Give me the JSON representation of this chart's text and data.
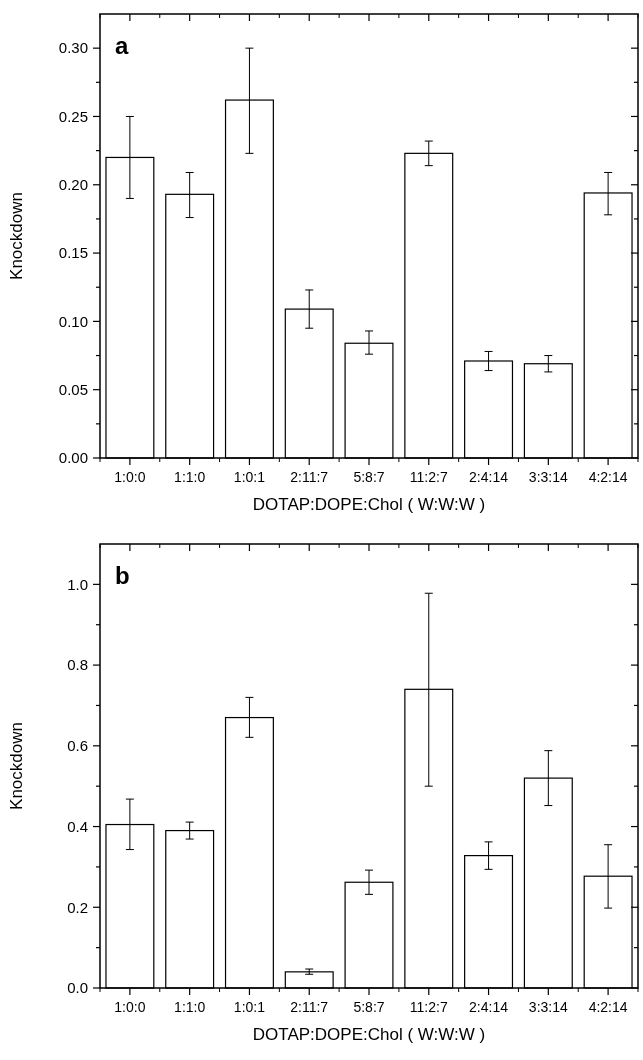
{
  "chart_data": [
    {
      "type": "bar",
      "title": "a",
      "categories": [
        "1:0:0",
        "1:1:0",
        "1:0:1",
        "2:11:7",
        "5:8:7",
        "11:2:7",
        "2:4:14",
        "3:3:14",
        "4:2:14"
      ],
      "values": [
        0.22,
        0.193,
        0.262,
        0.109,
        0.084,
        0.223,
        0.071,
        0.069,
        0.194
      ],
      "errors": [
        [
          0.19,
          0.25
        ],
        [
          0.176,
          0.209
        ],
        [
          0.223,
          0.3
        ],
        [
          0.095,
          0.123
        ],
        [
          0.076,
          0.093
        ],
        [
          0.214,
          0.232
        ],
        [
          0.064,
          0.078
        ],
        [
          0.063,
          0.075
        ],
        [
          0.178,
          0.209
        ]
      ],
      "color": "#ffffff",
      "xlabel": "DOTAP:DOPE:Chol ( W:W:W )",
      "ylabel": "Knockdown",
      "ylim": [
        0,
        0.325
      ],
      "yticks": [
        {
          "value": 0,
          "label": "0.00"
        },
        {
          "value": 0.025,
          "label": null
        },
        {
          "value": 0.05,
          "label": "0.05"
        },
        {
          "value": 0.075,
          "label": null
        },
        {
          "value": 0.1,
          "label": "0.10"
        },
        {
          "value": 0.125,
          "label": null
        },
        {
          "value": 0.15,
          "label": "0.15"
        },
        {
          "value": 0.175,
          "label": null
        },
        {
          "value": 0.2,
          "label": "0.20"
        },
        {
          "value": 0.225,
          "label": null
        },
        {
          "value": 0.25,
          "label": "0.25"
        },
        {
          "value": 0.275,
          "label": null
        },
        {
          "value": 0.3,
          "label": "0.30"
        }
      ],
      "grid": false
    },
    {
      "type": "bar",
      "title": "b",
      "categories": [
        "1:0:0",
        "1:1:0",
        "1:0:1",
        "2:11:7",
        "5:8:7",
        "11:2:7",
        "2:4:14",
        "3:3:14",
        "4:2:14"
      ],
      "values": [
        0.405,
        0.39,
        0.67,
        0.04,
        0.262,
        0.74,
        0.328,
        0.52,
        0.277
      ],
      "errors": [
        [
          0.343,
          0.468
        ],
        [
          0.369,
          0.411
        ],
        [
          0.621,
          0.72
        ],
        [
          0.034,
          0.047
        ],
        [
          0.232,
          0.292
        ],
        [
          0.5,
          0.978
        ],
        [
          0.294,
          0.362
        ],
        [
          0.452,
          0.588
        ],
        [
          0.198,
          0.355
        ]
      ],
      "color": "#ffffff",
      "xlabel": "DOTAP:DOPE:Chol ( W:W:W )",
      "ylabel": "Knockdown",
      "ylim": [
        0,
        1.1
      ],
      "yticks": [
        {
          "value": 0,
          "label": "0.0"
        },
        {
          "value": 0.1,
          "label": null
        },
        {
          "value": 0.2,
          "label": "0.2"
        },
        {
          "value": 0.3,
          "label": null
        },
        {
          "value": 0.4,
          "label": "0.4"
        },
        {
          "value": 0.5,
          "label": null
        },
        {
          "value": 0.6,
          "label": "0.6"
        },
        {
          "value": 0.7,
          "label": null
        },
        {
          "value": 0.8,
          "label": "0.8"
        },
        {
          "value": 0.9,
          "label": null
        },
        {
          "value": 1,
          "label": "1.0"
        }
      ],
      "grid": false
    }
  ]
}
